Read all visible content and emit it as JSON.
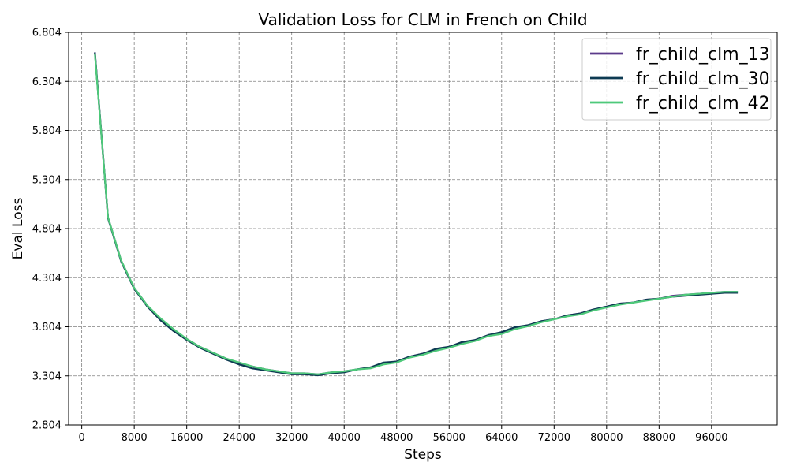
{
  "chart_data": {
    "type": "line",
    "title": "Validation Loss for CLM in French on Child",
    "xlabel": "Steps",
    "ylabel": "Eval Loss",
    "xlim": [
      -2000,
      106000
    ],
    "ylim": [
      2.804,
      6.804
    ],
    "xticks": [
      0,
      8000,
      16000,
      24000,
      32000,
      40000,
      48000,
      56000,
      64000,
      72000,
      80000,
      88000,
      96000
    ],
    "yticks": [
      2.804,
      3.304,
      3.804,
      4.304,
      4.804,
      5.304,
      5.804,
      6.304,
      6.804
    ],
    "xtick_labels": [
      "0",
      "8000",
      "16000",
      "24000",
      "32000",
      "40000",
      "48000",
      "56000",
      "64000",
      "72000",
      "80000",
      "88000",
      "96000"
    ],
    "ytick_labels": [
      "2.804",
      "3.304",
      "3.804",
      "4.304",
      "4.804",
      "5.304",
      "5.804",
      "6.304",
      "6.804"
    ],
    "grid": true,
    "legend_position": "top-right",
    "x": [
      2000,
      4000,
      6000,
      8000,
      10000,
      12000,
      14000,
      16000,
      18000,
      20000,
      22000,
      24000,
      26000,
      28000,
      30000,
      32000,
      34000,
      36000,
      38000,
      40000,
      42000,
      44000,
      46000,
      48000,
      50000,
      52000,
      54000,
      56000,
      58000,
      60000,
      62000,
      64000,
      66000,
      68000,
      70000,
      72000,
      74000,
      76000,
      78000,
      80000,
      82000,
      84000,
      86000,
      88000,
      90000,
      92000,
      94000,
      96000,
      98000,
      100000
    ],
    "series": [
      {
        "name": "fr_child_clm_13",
        "color": "#5b3a8a",
        "values": [
          6.6,
          4.92,
          4.48,
          4.2,
          4.02,
          3.88,
          3.77,
          3.68,
          3.6,
          3.54,
          3.48,
          3.43,
          3.4,
          3.37,
          3.35,
          3.33,
          3.33,
          3.32,
          3.34,
          3.35,
          3.37,
          3.39,
          3.43,
          3.45,
          3.5,
          3.53,
          3.57,
          3.6,
          3.64,
          3.67,
          3.72,
          3.74,
          3.79,
          3.82,
          3.86,
          3.88,
          3.92,
          3.94,
          3.98,
          4.01,
          4.04,
          4.05,
          4.08,
          4.09,
          4.12,
          4.13,
          4.14,
          4.15,
          4.16,
          4.16
        ]
      },
      {
        "name": "fr_child_clm_30",
        "color": "#0d3a52",
        "values": [
          6.6,
          4.91,
          4.47,
          4.19,
          4.01,
          3.87,
          3.76,
          3.67,
          3.59,
          3.53,
          3.47,
          3.42,
          3.38,
          3.36,
          3.34,
          3.32,
          3.32,
          3.31,
          3.33,
          3.34,
          3.37,
          3.39,
          3.44,
          3.45,
          3.5,
          3.53,
          3.58,
          3.6,
          3.65,
          3.67,
          3.72,
          3.75,
          3.8,
          3.82,
          3.86,
          3.88,
          3.92,
          3.94,
          3.98,
          4.01,
          4.04,
          4.05,
          4.08,
          4.09,
          4.11,
          4.12,
          4.13,
          4.14,
          4.15,
          4.15
        ]
      },
      {
        "name": "fr_child_clm_42",
        "color": "#4ec97a",
        "values": [
          6.58,
          4.92,
          4.48,
          4.2,
          4.02,
          3.89,
          3.78,
          3.68,
          3.6,
          3.54,
          3.48,
          3.44,
          3.4,
          3.37,
          3.35,
          3.33,
          3.33,
          3.32,
          3.34,
          3.35,
          3.37,
          3.38,
          3.42,
          3.44,
          3.49,
          3.52,
          3.56,
          3.59,
          3.63,
          3.66,
          3.71,
          3.73,
          3.78,
          3.81,
          3.85,
          3.88,
          3.91,
          3.93,
          3.97,
          4.0,
          4.03,
          4.05,
          4.07,
          4.09,
          4.11,
          4.13,
          4.14,
          4.15,
          4.16,
          4.16
        ]
      }
    ]
  }
}
